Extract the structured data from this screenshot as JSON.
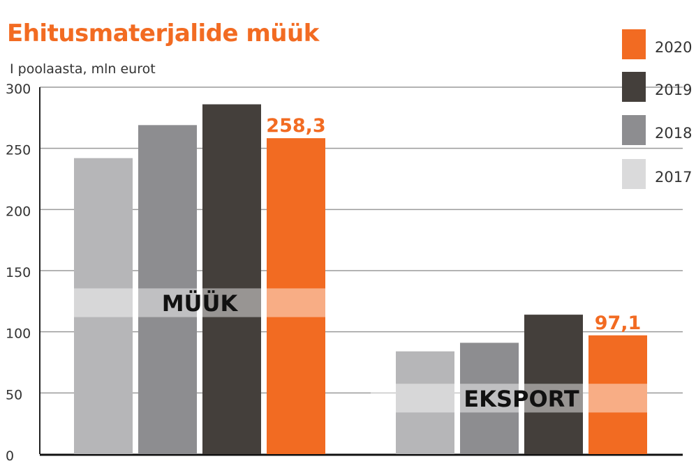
{
  "chart_data": {
    "type": "bar",
    "title": "Ehitusmaterjalide müük",
    "subtitle": "I poolaasta, mln eurot",
    "categories": [
      "MÜÜK",
      "EKSPORT"
    ],
    "series": [
      {
        "name": "2017",
        "values": [
          242,
          84
        ],
        "color": "#b6b6b8"
      },
      {
        "name": "2018",
        "values": [
          269,
          91
        ],
        "color": "#8d8d90"
      },
      {
        "name": "2019",
        "values": [
          286,
          114
        ],
        "color": "#443f3b"
      },
      {
        "name": "2020",
        "values": [
          258.3,
          97.1
        ],
        "color": "#f26b22"
      }
    ],
    "data_labels": {
      "series": "2020",
      "labels": [
        "258,3",
        "97,1"
      ]
    },
    "yticks": [
      "0",
      "50",
      "100",
      "150",
      "200",
      "250",
      "300"
    ],
    "ylim": [
      0,
      300
    ],
    "grid": true,
    "legend": {
      "placement": "top-right",
      "entries": [
        {
          "name": "2020",
          "color": "#f26b22"
        },
        {
          "name": "2019",
          "color": "#443f3b"
        },
        {
          "name": "2018",
          "color": "#8d8d90"
        },
        {
          "name": "2017",
          "color": "#dadadb"
        }
      ]
    }
  }
}
